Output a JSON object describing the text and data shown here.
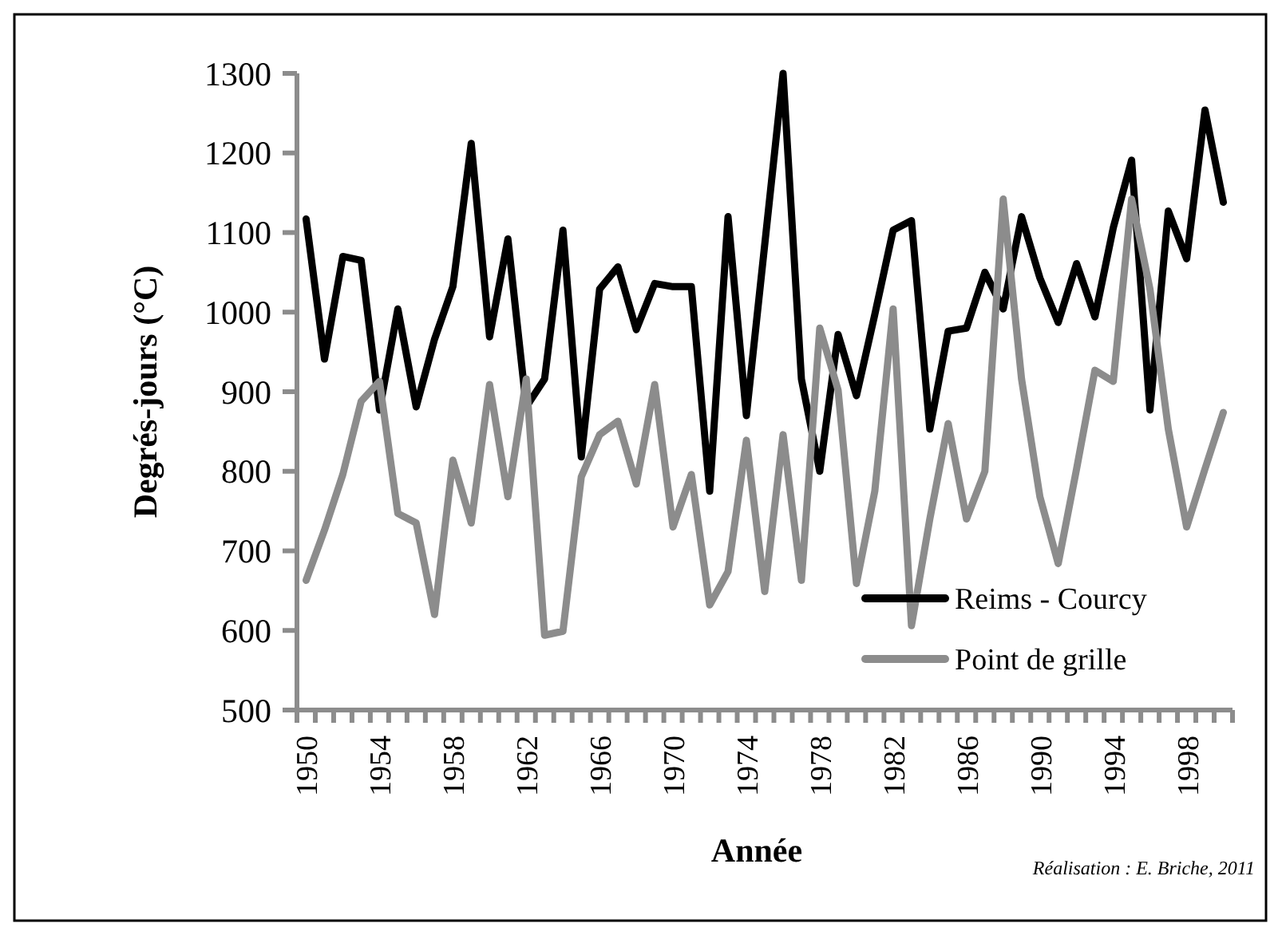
{
  "chart_data": {
    "type": "line",
    "xlabel": "Année",
    "ylabel": "Degrés-jours (°C)",
    "annotations": [
      "Réalisation : E. Briche, 2011"
    ],
    "categories": [
      "1950",
      null,
      null,
      null,
      "1954",
      null,
      null,
      null,
      "1958",
      null,
      null,
      null,
      "1962",
      null,
      null,
      null,
      "1966",
      null,
      null,
      null,
      "1970",
      null,
      null,
      null,
      "1974",
      null,
      null,
      null,
      "1978",
      null,
      null,
      null,
      "1982",
      null,
      null,
      null,
      "1986",
      null,
      null,
      null,
      "1990",
      null,
      null,
      null,
      "1994",
      null,
      null,
      null,
      "1998",
      null,
      null
    ],
    "series": [
      {
        "name": "Reims - Courcy",
        "color": "#000000",
        "values": [
          1117,
          941,
          1070,
          1065,
          877,
          1004,
          881,
          966,
          1032,
          1212,
          969,
          1092,
          881,
          916,
          1103,
          818,
          1029,
          1057,
          978,
          1036,
          1032,
          1032,
          775,
          1120,
          870,
          1085,
          1300,
          916,
          800,
          972,
          895,
          997,
          1103,
          1115,
          853,
          976,
          980,
          1050,
          1004,
          1120,
          1043,
          987,
          1061,
          994,
          1106,
          1191,
          877,
          1127,
          1067,
          1254,
          1138
        ]
      },
      {
        "name": "Point de grille",
        "color": "#8c8c8c",
        "values": [
          663,
          726,
          796,
          888,
          913,
          747,
          735,
          620,
          814,
          735,
          909,
          768,
          916,
          594,
          599,
          793,
          846,
          863,
          784,
          909,
          730,
          796,
          632,
          674,
          839,
          649,
          846,
          663,
          980,
          902,
          659,
          775,
          1004,
          606,
          740,
          860,
          740,
          800,
          1142,
          916,
          768,
          684,
          803,
          927,
          913,
          1142,
          1029,
          853,
          730,
          803,
          874
        ]
      }
    ],
    "ylim": [
      500,
      1300
    ],
    "yticks": [
      500,
      600,
      700,
      800,
      900,
      1000,
      1100,
      1200,
      1300
    ],
    "grid": false,
    "legend": "bottom right",
    "marker": "none",
    "line_style": "solid"
  }
}
